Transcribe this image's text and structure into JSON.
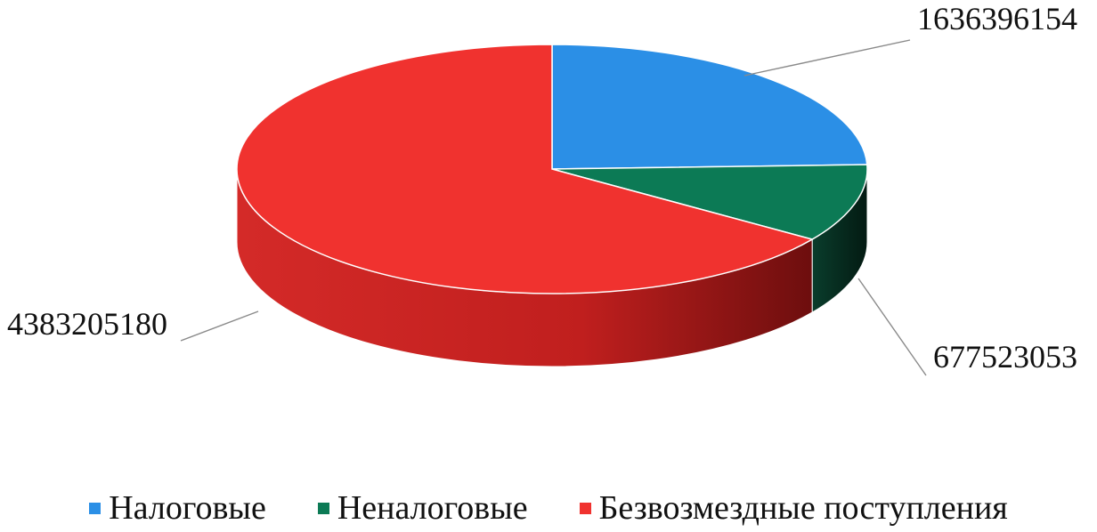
{
  "chart_data": {
    "type": "pie",
    "variant": "3d",
    "categories": [
      "Налоговые",
      "Неналоговые",
      "Безвозмездные поступления"
    ],
    "values": [
      1636396154,
      677523053,
      4383205180
    ],
    "data_labels": [
      "1636396154",
      "677523053",
      "4383205180"
    ],
    "colors": [
      "#2b8fe6",
      "#0c7a55",
      "#f0322f"
    ],
    "legend_position": "bottom"
  }
}
